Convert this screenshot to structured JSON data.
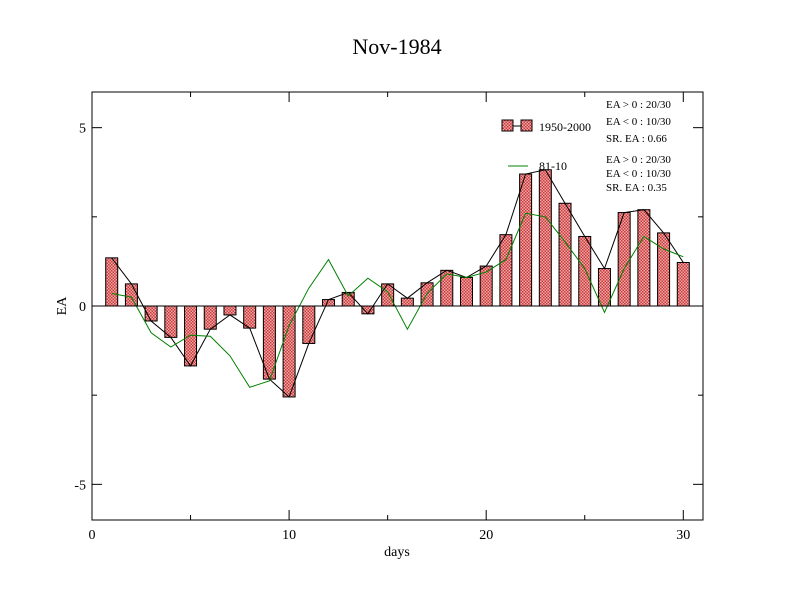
{
  "chart_data": {
    "type": "bar",
    "title": "Nov-1984",
    "xlabel": "days",
    "ylabel": "EA",
    "xlim": [
      0,
      31
    ],
    "ylim": [
      -6,
      6
    ],
    "x_ticks": [
      0,
      10,
      20,
      30
    ],
    "x_tick_labels": [
      "0",
      "10",
      "20",
      "30"
    ],
    "y_ticks": [
      -5,
      0,
      5
    ],
    "y_tick_labels": [
      "-5",
      "0",
      "5"
    ],
    "grid": false,
    "legend_position": "top-right",
    "days": [
      1,
      2,
      3,
      4,
      5,
      6,
      7,
      8,
      9,
      10,
      11,
      12,
      13,
      14,
      15,
      16,
      17,
      18,
      19,
      20,
      21,
      22,
      23,
      24,
      25,
      26,
      27,
      28,
      29,
      30
    ],
    "series": [
      {
        "name": "1950-2000",
        "style": "bar+line",
        "bar_color": "#e46a6a",
        "line_color": "#000000",
        "values": [
          1.35,
          0.62,
          -0.42,
          -0.88,
          -1.68,
          -0.65,
          -0.25,
          -0.62,
          -2.05,
          -2.55,
          -1.05,
          0.18,
          0.38,
          -0.22,
          0.62,
          0.22,
          0.65,
          1.0,
          0.8,
          1.12,
          2.0,
          3.7,
          3.82,
          2.88,
          1.95,
          1.05,
          2.62,
          2.7,
          2.05,
          1.22
        ]
      },
      {
        "name": "81-10",
        "style": "line",
        "line_color": "#008000",
        "values": [
          0.35,
          0.25,
          -0.75,
          -1.15,
          -0.82,
          -0.85,
          -1.4,
          -2.28,
          -2.1,
          -0.55,
          0.5,
          1.3,
          0.28,
          0.78,
          0.4,
          -0.65,
          0.35,
          0.9,
          0.8,
          0.95,
          1.3,
          2.6,
          2.5,
          1.8,
          1.05,
          -0.18,
          1.05,
          1.95,
          1.6,
          1.38
        ]
      }
    ],
    "stats": [
      {
        "lines": [
          "EA > 0 : 20/30",
          "EA < 0 : 10/30",
          "SR. EA :  0.66"
        ]
      },
      {
        "lines": [
          "EA > 0 : 20/30",
          "EA < 0 : 10/30",
          "SR. EA :  0.35"
        ]
      }
    ]
  }
}
